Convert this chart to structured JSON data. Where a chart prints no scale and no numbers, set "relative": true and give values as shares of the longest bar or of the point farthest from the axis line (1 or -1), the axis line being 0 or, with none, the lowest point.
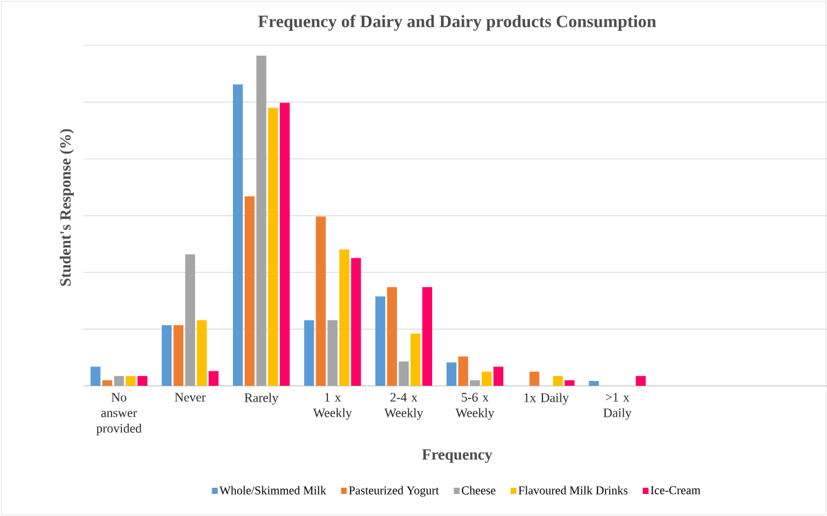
{
  "chart_data": {
    "type": "bar",
    "title": "Frequency of Dairy and Dairy products Consumption",
    "xlabel": "Frequency",
    "ylabel": "Student's Response (%)",
    "categories": [
      "No answer provided",
      "Never",
      "Rarely",
      "1 x Weekly",
      "2-4 x Weekly",
      "5-6 x Weekly",
      "1x Daily",
      ">1 x Daily"
    ],
    "relative": true,
    "grid": "y",
    "legend": "bottom",
    "series": [
      {
        "name": "Whole/Skimmed Milk",
        "color": "#5b9bd5",
        "values": [
          0.058,
          0.184,
          0.913,
          0.199,
          0.271,
          0.071,
          0,
          0.015
        ]
      },
      {
        "name": "Pasteurized Yogurt",
        "color": "#ed7d31",
        "values": [
          0.017,
          0.184,
          0.574,
          0.513,
          0.299,
          0.089,
          0.043,
          0
        ]
      },
      {
        "name": "Cheese",
        "color": "#a5a5a5",
        "values": [
          0.03,
          0.398,
          1,
          0.199,
          0.074,
          0.017,
          0,
          0
        ]
      },
      {
        "name": "Flavoured Milk Drinks",
        "color": "#ffc000",
        "values": [
          0.03,
          0.199,
          0.842,
          0.413,
          0.158,
          0.043,
          0.03,
          0
        ]
      },
      {
        "name": "Ice-Cream",
        "color": "#ff0066",
        "values": [
          0.03,
          0.045,
          0.857,
          0.387,
          0.299,
          0.058,
          0.017,
          0.03
        ]
      }
    ]
  }
}
